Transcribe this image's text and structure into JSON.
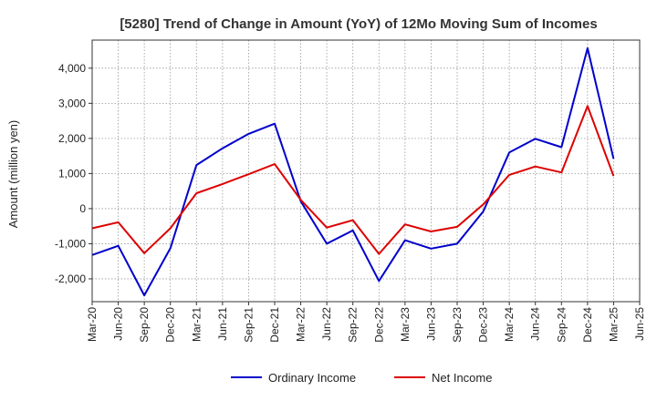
{
  "chart_data": {
    "type": "line",
    "title": "[5280]  Trend of Change in Amount (YoY) of 12Mo Moving Sum of Incomes",
    "xlabel": "",
    "ylabel": "Amount (million yen)",
    "categories": [
      "Mar-20",
      "Jun-20",
      "Sep-20",
      "Dec-20",
      "Mar-21",
      "Jun-21",
      "Sep-21",
      "Dec-21",
      "Mar-22",
      "Jun-22",
      "Sep-22",
      "Dec-22",
      "Mar-23",
      "Jun-23",
      "Sep-23",
      "Dec-23",
      "Mar-24",
      "Jun-24",
      "Sep-24",
      "Dec-24",
      "Mar-25",
      "Jun-25"
    ],
    "ylim": [
      -2650,
      4800
    ],
    "yticks": [
      -2000,
      -1000,
      0,
      1000,
      2000,
      3000,
      4000
    ],
    "ytick_labels": [
      "-2,000",
      "-1,000",
      "0",
      "1,000",
      "2,000",
      "3,000",
      "4,000"
    ],
    "grid": true,
    "legend_position": "bottom",
    "series": [
      {
        "name": "Ordinary Income",
        "color": "#0000cc",
        "values": [
          -1320,
          -1060,
          -2470,
          -1130,
          1240,
          1720,
          2130,
          2420,
          210,
          -1000,
          -620,
          -2060,
          -900,
          -1140,
          -1000,
          -80,
          1600,
          1990,
          1750,
          4570,
          1420,
          null
        ]
      },
      {
        "name": "Net Income",
        "color": "#dd0000",
        "values": [
          -560,
          -390,
          -1270,
          -560,
          440,
          700,
          980,
          1270,
          250,
          -540,
          -330,
          -1290,
          -450,
          -650,
          -520,
          120,
          960,
          1200,
          1030,
          2920,
          930,
          null
        ]
      }
    ]
  }
}
